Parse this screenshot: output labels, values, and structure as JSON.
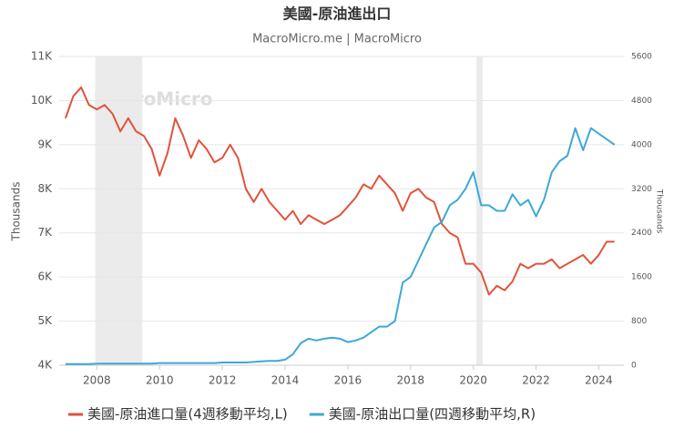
{
  "chart_data": {
    "type": "line",
    "title": "美國-原油進出口",
    "subtitle": "MacroMicro.me | MacroMicro",
    "watermark": "MacroMicro",
    "ylabel": "Thousands",
    "y2label": "Thousands",
    "x": [
      2007,
      2007.25,
      2007.5,
      2007.75,
      2008,
      2008.25,
      2008.5,
      2008.75,
      2009,
      2009.25,
      2009.5,
      2009.75,
      2010,
      2010.25,
      2010.5,
      2010.75,
      2011,
      2011.25,
      2011.5,
      2011.75,
      2012,
      2012.25,
      2012.5,
      2012.75,
      2013,
      2013.25,
      2013.5,
      2013.75,
      2014,
      2014.25,
      2014.5,
      2014.75,
      2015,
      2015.25,
      2015.5,
      2015.75,
      2016,
      2016.25,
      2016.5,
      2016.75,
      2017,
      2017.25,
      2017.5,
      2017.75,
      2018,
      2018.25,
      2018.5,
      2018.75,
      2019,
      2019.25,
      2019.5,
      2019.75,
      2020,
      2020.25,
      2020.5,
      2020.75,
      2021,
      2021.25,
      2021.5,
      2021.75,
      2022,
      2022.25,
      2022.5,
      2022.75,
      2023,
      2023.25,
      2023.5,
      2023.75,
      2024,
      2024.25,
      2024.5
    ],
    "xlim": [
      2006.8,
      2024.8
    ],
    "xticks": [
      2008,
      2010,
      2012,
      2014,
      2016,
      2018,
      2020,
      2022,
      2024
    ],
    "ylim": [
      4000,
      11000
    ],
    "yticks": [
      {
        "value": 4000,
        "label": "4K"
      },
      {
        "value": 5000,
        "label": "5K"
      },
      {
        "value": 6000,
        "label": "6K"
      },
      {
        "value": 7000,
        "label": "7K"
      },
      {
        "value": 8000,
        "label": "8K"
      },
      {
        "value": 9000,
        "label": "9K"
      },
      {
        "value": 10000,
        "label": "10K"
      },
      {
        "value": 11000,
        "label": "11K"
      }
    ],
    "y2lim": [
      0,
      5600
    ],
    "y2ticks": [
      0,
      800,
      1600,
      2400,
      3200,
      4000,
      4800,
      5600
    ],
    "grid": true,
    "recessions": [
      [
        2007.95,
        2009.45
      ],
      [
        2020.1,
        2020.3
      ]
    ],
    "series": [
      {
        "name": "美國-原油進口量(4週移動平均,L)",
        "color": "#e0533c",
        "axis": "y",
        "values": [
          9600,
          10100,
          10300,
          9900,
          9800,
          9900,
          9700,
          9300,
          9600,
          9300,
          9200,
          8900,
          8300,
          8800,
          9600,
          9200,
          8700,
          9100,
          8900,
          8600,
          8700,
          9000,
          8700,
          8000,
          7700,
          8000,
          7700,
          7500,
          7300,
          7500,
          7200,
          7400,
          7300,
          7200,
          7300,
          7400,
          7600,
          7800,
          8100,
          8000,
          8300,
          8100,
          7900,
          7500,
          7900,
          8000,
          7800,
          7700,
          7200,
          7000,
          6900,
          6300,
          6300,
          6100,
          5600,
          5800,
          5700,
          5900,
          6300,
          6200,
          6300,
          6300,
          6400,
          6200,
          6300,
          6400,
          6500,
          6300,
          6500,
          6800,
          6800
        ]
      },
      {
        "name": "美國-原油出口量(四週移動平均,R)",
        "color": "#3ea8d6",
        "axis": "y2",
        "values": [
          20,
          20,
          20,
          20,
          30,
          30,
          30,
          30,
          30,
          30,
          30,
          30,
          40,
          40,
          40,
          40,
          40,
          40,
          40,
          40,
          50,
          50,
          50,
          50,
          60,
          70,
          80,
          80,
          100,
          200,
          400,
          480,
          450,
          480,
          500,
          480,
          420,
          450,
          500,
          600,
          700,
          700,
          800,
          1500,
          1600,
          1900,
          2200,
          2500,
          2600,
          2900,
          3000,
          3200,
          3500,
          2900,
          2900,
          2800,
          2800,
          3100,
          2900,
          3000,
          2700,
          3000,
          3500,
          3700,
          3800,
          4300,
          3900,
          4300,
          4200,
          4100,
          4000
        ]
      }
    ]
  }
}
